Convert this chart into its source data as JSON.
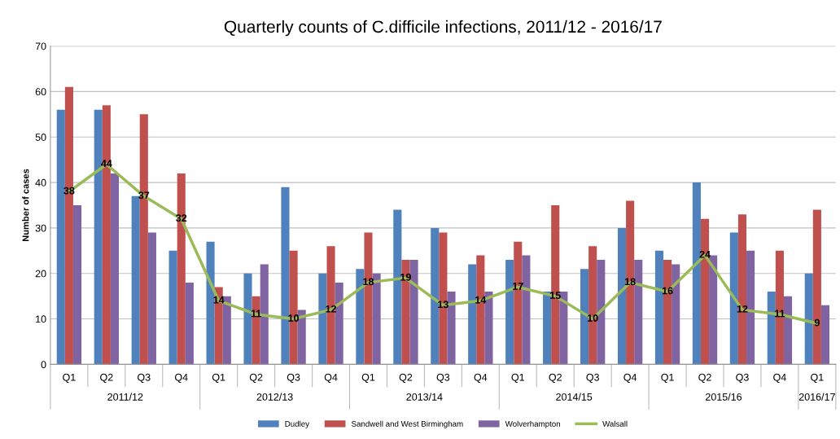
{
  "chart_data": {
    "type": "bar",
    "title": "Quarterly counts of C.difficile infections, 2011/12 - 2016/17",
    "ylabel": "Number of cases",
    "categories": [
      "Q1",
      "Q2",
      "Q3",
      "Q4",
      "Q1",
      "Q2",
      "Q3",
      "Q4",
      "Q1",
      "Q2",
      "Q3",
      "Q4",
      "Q1",
      "Q2",
      "Q3",
      "Q4",
      "Q1",
      "Q2",
      "Q3",
      "Q4",
      "Q1"
    ],
    "annotations": [
      "2011/12",
      "2012/13",
      "2013/14",
      "2014/15",
      "2015/16",
      "2016/17"
    ],
    "series": [
      {
        "name": "Dudley",
        "color": "#4f81bd",
        "values": [
          56,
          56,
          37,
          25,
          27,
          20,
          39,
          20,
          21,
          34,
          30,
          22,
          23,
          16,
          21,
          30,
          25,
          40,
          29,
          16,
          20
        ]
      },
      {
        "name": "Sandwell and West Birmingham",
        "color": "#c0504d",
        "values": [
          61,
          57,
          55,
          42,
          17,
          15,
          25,
          26,
          29,
          23,
          29,
          24,
          27,
          35,
          26,
          36,
          23,
          32,
          33,
          25,
          34
        ]
      },
      {
        "name": "Wolverhampton",
        "color": "#8064a2",
        "values": [
          35,
          42,
          29,
          18,
          15,
          22,
          12,
          18,
          20,
          23,
          16,
          16,
          24,
          16,
          23,
          23,
          22,
          24,
          25,
          15,
          13
        ]
      },
      {
        "name": "Walsall",
        "color": "#9bbb59",
        "type": "line",
        "values": [
          38,
          44,
          37,
          32,
          14,
          11,
          10,
          12,
          18,
          19,
          13,
          14,
          17,
          15,
          10,
          18,
          16,
          24,
          12,
          11,
          9
        ],
        "value_labels": [
          "38",
          "44",
          "37",
          "32",
          "14",
          "11",
          "10",
          "12",
          "18",
          "19",
          "13",
          "14",
          "17",
          "15",
          "10",
          "18",
          "16",
          "24",
          "12",
          "11",
          "9"
        ]
      }
    ],
    "ylim": [
      0,
      70
    ],
    "yticks": [
      0,
      10,
      20,
      30,
      40,
      50,
      60,
      70
    ],
    "grid": "y",
    "legend": "bottom",
    "marker": "none",
    "line_style": "solid"
  }
}
